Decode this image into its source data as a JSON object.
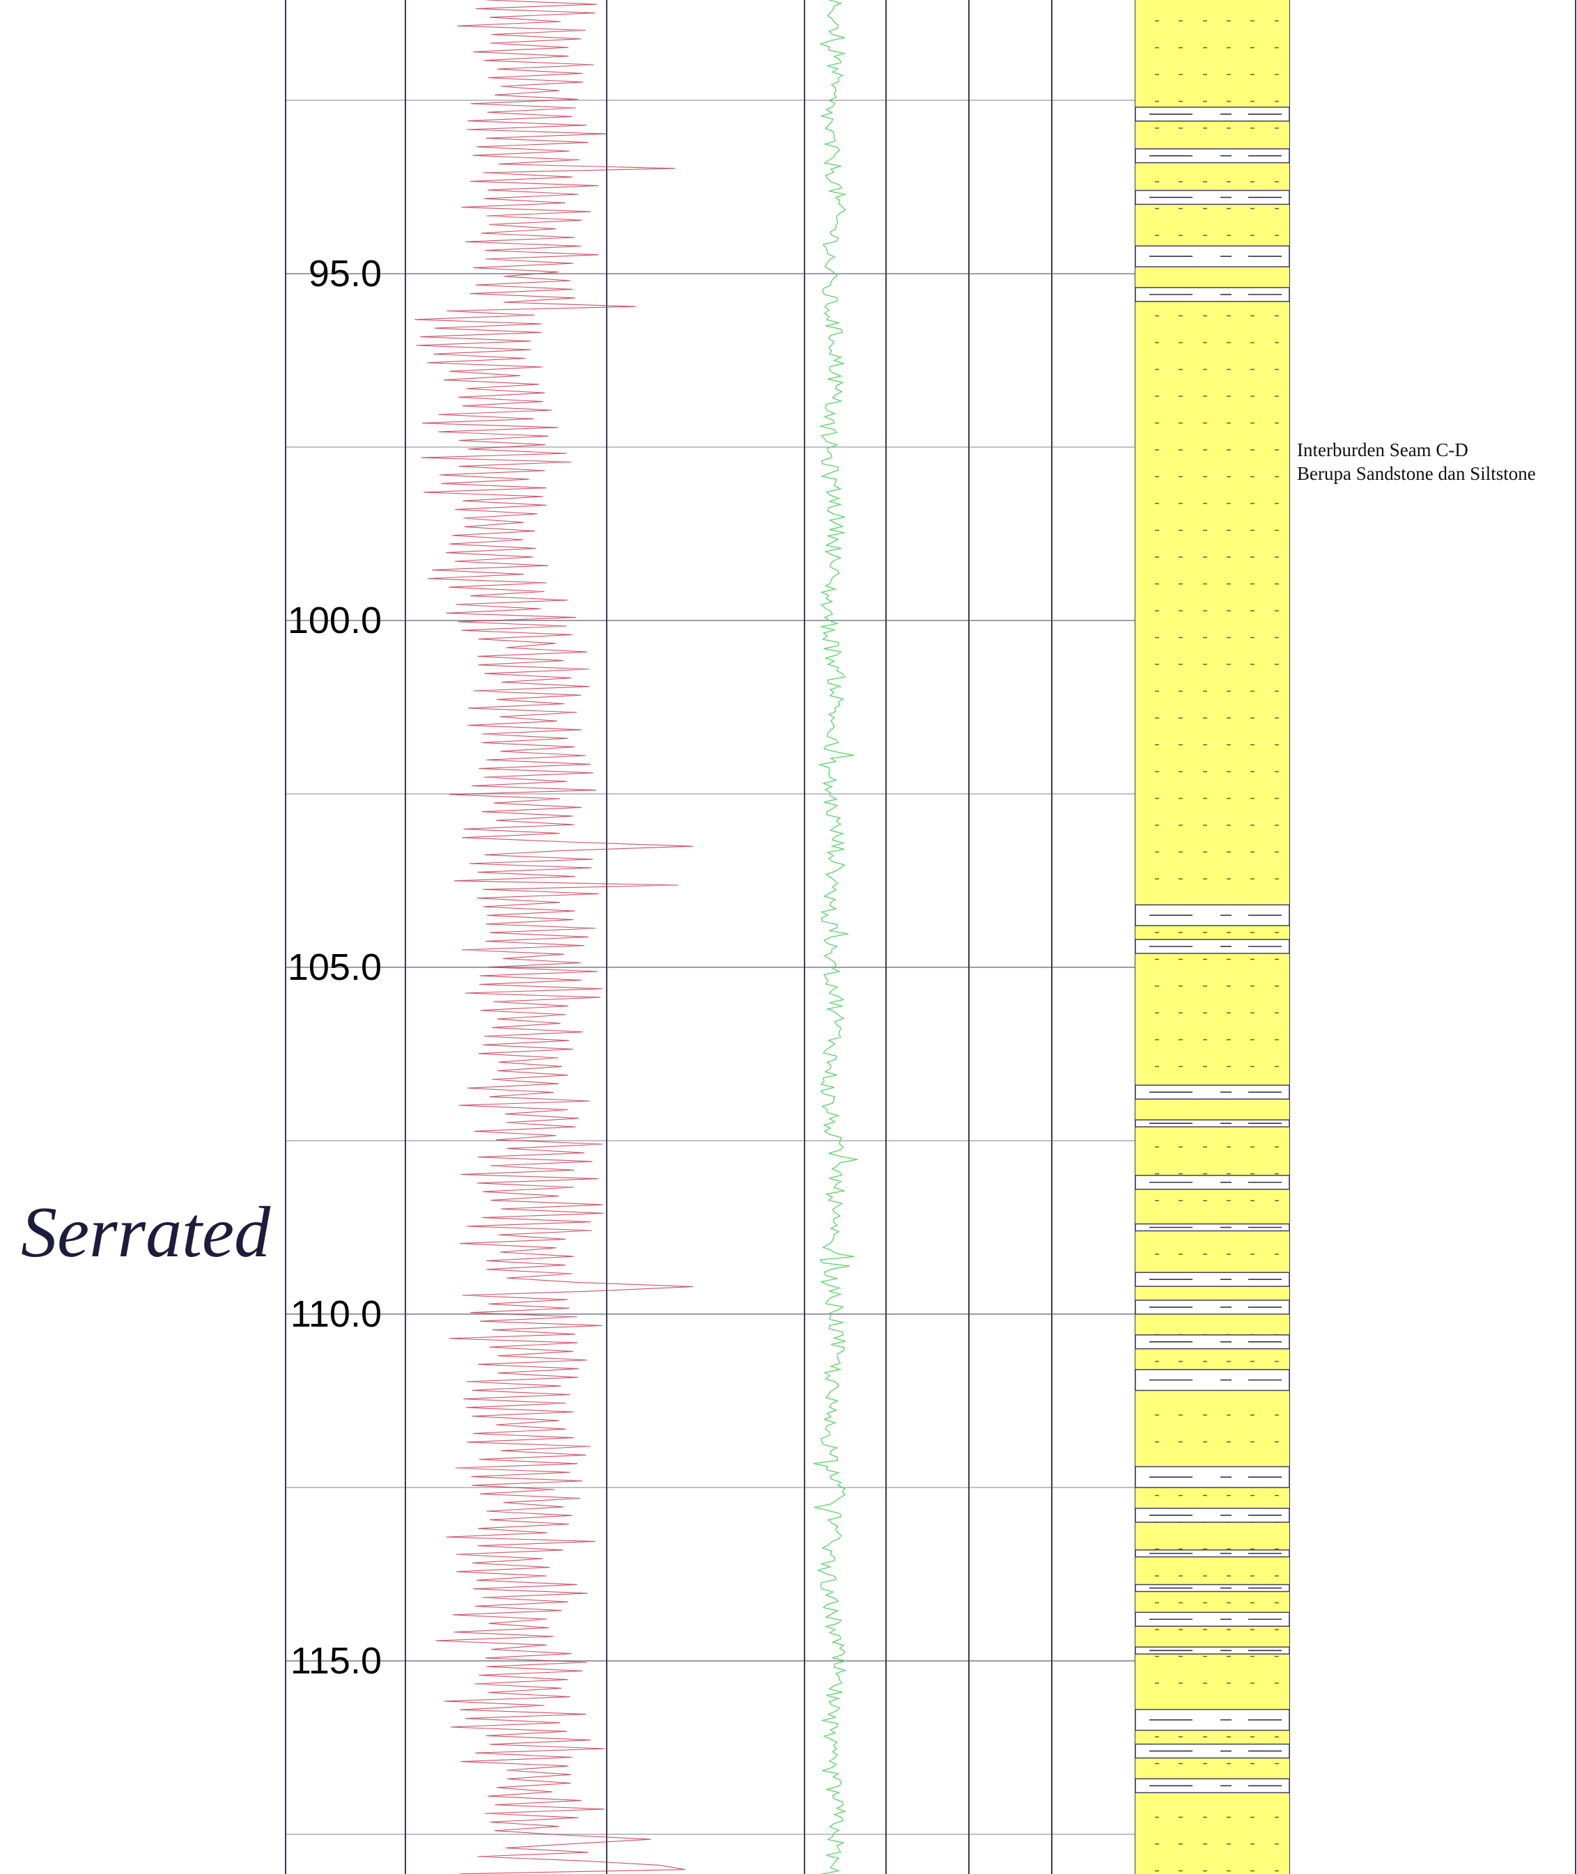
{
  "chart_data": {
    "type": "line",
    "subtype": "well-log",
    "depth_range": [
      88.2,
      118.8
    ],
    "depth_ticks": [
      95.0,
      100.0,
      105.0,
      110.0,
      115.0
    ],
    "depth_tick_labels": [
      "95.0",
      "100.0",
      "105.0",
      "110.0",
      "115.0"
    ],
    "minor_depth_lines": [
      92.5,
      97.5,
      102.5,
      107.5,
      112.5,
      117.5
    ],
    "log_pattern_label": "Serrated",
    "series": [
      {
        "color": "#c8324a",
        "track": "gamma"
      },
      {
        "color": "#56d466",
        "track": "density"
      }
    ],
    "lithology": {
      "sand_color": "#ffff7a",
      "gap_color": "#ffffff",
      "partings": [
        [
          89.8,
          90.2
        ],
        [
          92.6,
          92.8
        ],
        [
          93.2,
          93.4
        ],
        [
          93.8,
          94.0
        ],
        [
          94.6,
          94.9
        ],
        [
          95.2,
          95.4
        ],
        [
          104.1,
          104.4
        ],
        [
          104.6,
          104.8
        ],
        [
          106.7,
          106.9
        ],
        [
          107.2,
          107.3
        ],
        [
          108.0,
          108.2
        ],
        [
          108.7,
          108.8
        ],
        [
          109.4,
          109.6
        ],
        [
          109.8,
          110.0
        ],
        [
          110.3,
          110.5
        ],
        [
          110.8,
          111.1
        ],
        [
          112.2,
          112.5
        ],
        [
          112.8,
          113.0
        ],
        [
          113.4,
          113.5
        ],
        [
          113.9,
          114.0
        ],
        [
          114.3,
          114.5
        ],
        [
          114.8,
          114.9
        ],
        [
          115.7,
          116.0
        ],
        [
          116.2,
          116.4
        ],
        [
          116.7,
          116.9
        ]
      ]
    },
    "annotation": {
      "lines": [
        "Interburden Seam C-D",
        "Berupa Sandstone dan Siltstone"
      ]
    }
  }
}
